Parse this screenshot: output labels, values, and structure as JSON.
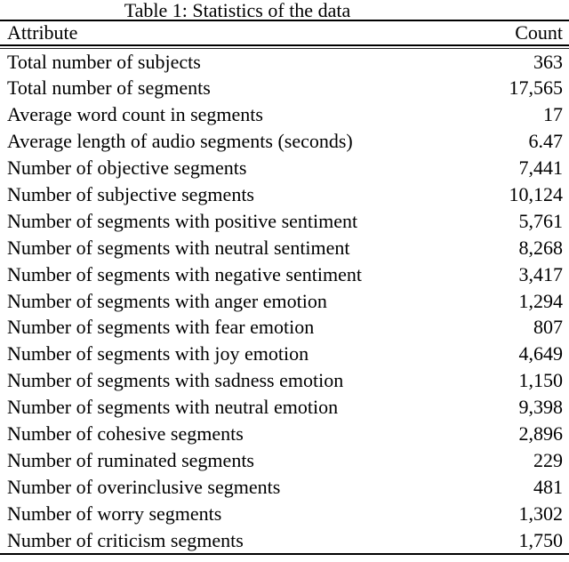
{
  "caption": "Table 1: Statistics of the data",
  "colors": {
    "text": "#000000",
    "background": "#ffffff",
    "rule": "#000000"
  },
  "table": {
    "headers": [
      "Attribute",
      "Count"
    ],
    "rows": [
      [
        "Total number of subjects",
        "363"
      ],
      [
        "Total number of segments",
        "17,565"
      ],
      [
        "Average word count in segments",
        "17"
      ],
      [
        "Average length of audio segments (seconds)",
        "6.47"
      ],
      [
        "Number of objective segments",
        "7,441"
      ],
      [
        "Number of subjective segments",
        "10,124"
      ],
      [
        "Number of segments with positive sentiment",
        "5,761"
      ],
      [
        "Number of segments with neutral sentiment",
        "8,268"
      ],
      [
        "Number of segments with negative sentiment",
        "3,417"
      ],
      [
        "Number of segments with anger emotion",
        "1,294"
      ],
      [
        "Number of segments with fear emotion",
        "807"
      ],
      [
        "Number of segments with joy emotion",
        "4,649"
      ],
      [
        "Number of segments with sadness emotion",
        "1,150"
      ],
      [
        "Number of segments with neutral emotion",
        "9,398"
      ],
      [
        "Number of cohesive segments",
        "2,896"
      ],
      [
        "Number of ruminated segments",
        "229"
      ],
      [
        "Number of overinclusive segments",
        "481"
      ],
      [
        "Number of worry segments",
        "1,302"
      ],
      [
        "Number of criticism segments",
        "1,750"
      ]
    ]
  }
}
